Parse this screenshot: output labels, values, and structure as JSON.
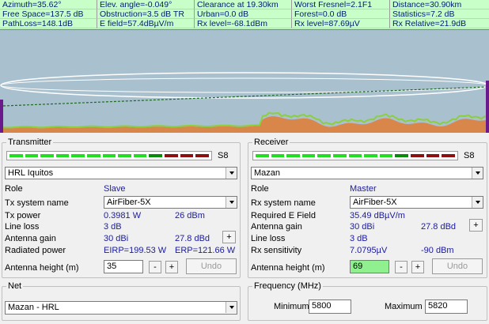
{
  "info": {
    "rows": [
      [
        "Azimuth=35.62°",
        "Elev. angle=-0.049°",
        "Clearance at 19.30km",
        "Worst Fresnel=2.1F1",
        "Distance=30.90km"
      ],
      [
        "Free Space=137.5 dB",
        "Obstruction=3.5 dB TR",
        "Urban=0.0 dB",
        "Forest=0.0 dB",
        "Statistics=7.2 dB"
      ],
      [
        "PathLoss=148.1dB",
        "E field=57.4dBµV/m",
        "Rx level=-68.1dBm",
        "Rx level=87.69µV",
        "Rx Relative=21.9dB"
      ]
    ]
  },
  "colors": {
    "info_bg": "#c8ffc8",
    "sky": "#a9c0cf",
    "terrain": "#d9864a",
    "vegetation": "#8ccf3c",
    "los_line": "#1d6a1d",
    "fresnel": "#ffffff",
    "value_text": "#1a1aa0",
    "rx_height_bg": "#90f090"
  },
  "transmitter": {
    "title": "Transmitter",
    "meter_label": "S8",
    "meter_segments": [
      "g",
      "g",
      "g",
      "g",
      "g",
      "g",
      "g",
      "g",
      "g",
      "dg",
      "r",
      "r",
      "r"
    ],
    "site": "HRL Iquitos",
    "role_label": "Role",
    "role_value": "Slave",
    "system_label": "Tx system name",
    "system_value": "AirFiber-5X",
    "power_label": "Tx power",
    "power_w": "0.3981 W",
    "power_dbm": "26 dBm",
    "line_loss_label": "Line loss",
    "line_loss_value": "3 dB",
    "gain_label": "Antenna gain",
    "gain_dbi": "30 dBi",
    "gain_dbd": "27.8 dBd",
    "plus": "+",
    "radiated_label": "Radiated power",
    "eirp": "EIRP=199.53 W",
    "erp": "ERP=121.66 W",
    "height_label": "Antenna height (m)",
    "height_value": "35",
    "minus": "-",
    "undo": "Undo"
  },
  "receiver": {
    "title": "Receiver",
    "meter_label": "S8",
    "meter_segments": [
      "g",
      "g",
      "g",
      "g",
      "g",
      "g",
      "g",
      "g",
      "g",
      "dg",
      "r",
      "r",
      "r"
    ],
    "site": "Mazan",
    "role_label": "Role",
    "role_value": "Master",
    "system_label": "Rx system name",
    "system_value": "AirFiber-5X",
    "req_label": "Required E Field",
    "req_value": "35.49 dBµV/m",
    "gain_label": "Antenna gain",
    "gain_dbi": "30 dBi",
    "gain_dbd": "27.8 dBd",
    "plus": "+",
    "line_loss_label": "Line loss",
    "line_loss_value": "3 dB",
    "sens_label": "Rx sensitivity",
    "sens_uv": "7.0795µV",
    "sens_dbm": "-90 dBm",
    "height_label": "Antenna height (m)",
    "height_value": "69",
    "minus": "-",
    "undo": "Undo"
  },
  "net": {
    "title": "Net",
    "value": "Mazan - HRL"
  },
  "frequency": {
    "title": "Frequency (MHz)",
    "min_label": "Minimum",
    "min_value": "5800",
    "max_label": "Maximum",
    "max_value": "5820"
  }
}
